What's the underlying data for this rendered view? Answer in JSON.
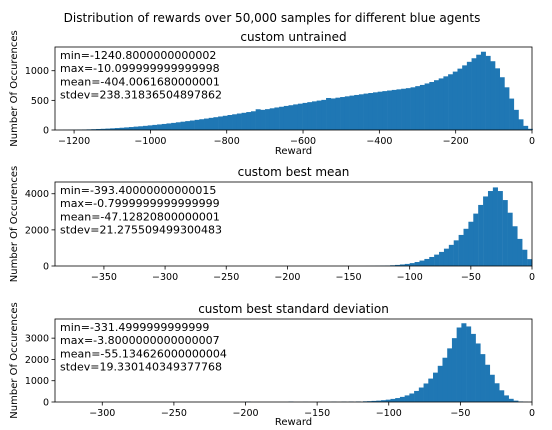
{
  "figure": {
    "suptitle": "Distribution of rewards over 50,000 samples for different blue agents",
    "bar_color": "#1f77b4"
  },
  "chart_data": [
    {
      "type": "bar",
      "title": "custom untrained",
      "xlabel": "Reward",
      "ylabel": "Number Of Occurences",
      "xlim": [
        -1250,
        0
      ],
      "ylim": [
        0,
        1400
      ],
      "xticks": [
        -1200,
        -1000,
        -800,
        -600,
        -400,
        -200,
        0
      ],
      "xtick_labels": [
        "−1200",
        "−1000",
        "−800",
        "−600",
        "−400",
        "−200",
        "0"
      ],
      "yticks": [
        0,
        500,
        1000
      ],
      "ytick_labels": [
        "0",
        "500",
        "1000"
      ],
      "stats": [
        "min=-1240.8000000000002",
        "max=-10.099999999999998",
        "mean=-404.0061680000001",
        "stdev=238.31836504897862"
      ],
      "bin_width": 12.3,
      "bins": [
        [
          -1240.8,
          2
        ],
        [
          -1228.5,
          3
        ],
        [
          -1216.2,
          4
        ],
        [
          -1203.9,
          5
        ],
        [
          -1191.6,
          7
        ],
        [
          -1179.3,
          9
        ],
        [
          -1167.0,
          11
        ],
        [
          -1154.7,
          14
        ],
        [
          -1142.4,
          17
        ],
        [
          -1130.1,
          20
        ],
        [
          -1117.8,
          24
        ],
        [
          -1105.5,
          28
        ],
        [
          -1093.2,
          33
        ],
        [
          -1080.9,
          38
        ],
        [
          -1068.6,
          44
        ],
        [
          -1056.3,
          50
        ],
        [
          -1044.0,
          57
        ],
        [
          -1031.7,
          63
        ],
        [
          -1019.4,
          70
        ],
        [
          -1007.1,
          78
        ],
        [
          -994.8,
          86
        ],
        [
          -982.5,
          94
        ],
        [
          -970.2,
          102
        ],
        [
          -957.9,
          111
        ],
        [
          -945.6,
          120
        ],
        [
          -933.3,
          130
        ],
        [
          -921.0,
          140
        ],
        [
          -908.7,
          150
        ],
        [
          -896.4,
          160
        ],
        [
          -884.1,
          171
        ],
        [
          -871.8,
          182
        ],
        [
          -859.5,
          193
        ],
        [
          -847.2,
          205
        ],
        [
          -834.9,
          216
        ],
        [
          -822.6,
          228
        ],
        [
          -810.3,
          240
        ],
        [
          -798.0,
          253
        ],
        [
          -785.7,
          265
        ],
        [
          -773.4,
          278
        ],
        [
          -761.1,
          290
        ],
        [
          -748.8,
          303
        ],
        [
          -736.5,
          316
        ],
        [
          -724.2,
          350
        ],
        [
          -711.9,
          340
        ],
        [
          -699.6,
          352
        ],
        [
          -687.3,
          366
        ],
        [
          -675.0,
          380
        ],
        [
          -662.7,
          392
        ],
        [
          -650.4,
          406
        ],
        [
          -638.1,
          418
        ],
        [
          -625.8,
          432
        ],
        [
          -613.5,
          444
        ],
        [
          -601.2,
          457
        ],
        [
          -588.9,
          470
        ],
        [
          -576.6,
          483
        ],
        [
          -564.3,
          496
        ],
        [
          -552.0,
          508
        ],
        [
          -539.7,
          540
        ],
        [
          -527.4,
          532
        ],
        [
          -515.1,
          545
        ],
        [
          -502.8,
          556
        ],
        [
          -490.5,
          568
        ],
        [
          -478.2,
          580
        ],
        [
          -465.9,
          591
        ],
        [
          -453.6,
          602
        ],
        [
          -441.3,
          614
        ],
        [
          -429.0,
          624
        ],
        [
          -416.7,
          635
        ],
        [
          -404.4,
          646
        ],
        [
          -392.1,
          656
        ],
        [
          -379.8,
          666
        ],
        [
          -367.5,
          676
        ],
        [
          -355.2,
          686
        ],
        [
          -342.9,
          696
        ],
        [
          -330.6,
          706
        ],
        [
          -318.3,
          720
        ],
        [
          -306.0,
          740
        ],
        [
          -293.7,
          760
        ],
        [
          -281.4,
          785
        ],
        [
          -269.1,
          810
        ],
        [
          -256.8,
          840
        ],
        [
          -244.5,
          870
        ],
        [
          -232.2,
          905
        ],
        [
          -219.9,
          940
        ],
        [
          -207.6,
          985
        ],
        [
          -195.3,
          1035
        ],
        [
          -183.0,
          1090
        ],
        [
          -170.7,
          1150
        ],
        [
          -158.4,
          1210
        ],
        [
          -146.1,
          1270
        ],
        [
          -133.8,
          1320
        ],
        [
          -121.5,
          1250
        ],
        [
          -109.2,
          1160
        ],
        [
          -96.9,
          1040
        ],
        [
          -84.6,
          890
        ],
        [
          -72.3,
          720
        ],
        [
          -60.0,
          530
        ],
        [
          -47.7,
          340
        ],
        [
          -35.4,
          180
        ],
        [
          -23.1,
          70
        ],
        [
          -10.8,
          20
        ]
      ]
    },
    {
      "type": "bar",
      "title": "custom best mean",
      "xlabel": "",
      "ylabel": "Number Of Occurences",
      "xlim": [
        -390,
        0
      ],
      "ylim": [
        0,
        4650
      ],
      "xticks": [
        -350,
        -300,
        -250,
        -200,
        -150,
        -100,
        -50,
        0
      ],
      "xtick_labels": [
        "−350",
        "−300",
        "−250",
        "−200",
        "−150",
        "−100",
        "−50",
        "0"
      ],
      "yticks": [
        0,
        2000,
        4000
      ],
      "ytick_labels": [
        "0",
        "2000",
        "4000"
      ],
      "stats": [
        "min=-393.40000000000015",
        "max=-0.7999999999999999",
        "mean=-47.12820800000001",
        "stdev=21.275509499300483"
      ],
      "bin_width": 3.93,
      "bins": [
        [
          -136,
          4
        ],
        [
          -132,
          8
        ],
        [
          -128,
          12
        ],
        [
          -124,
          18
        ],
        [
          -120,
          26
        ],
        [
          -116,
          40
        ],
        [
          -112,
          60
        ],
        [
          -108,
          85
        ],
        [
          -104,
          115
        ],
        [
          -100,
          160
        ],
        [
          -96,
          220
        ],
        [
          -92,
          300
        ],
        [
          -88,
          390
        ],
        [
          -84,
          500
        ],
        [
          -80,
          630
        ],
        [
          -76,
          780
        ],
        [
          -72,
          960
        ],
        [
          -68,
          1170
        ],
        [
          -64,
          1420
        ],
        [
          -60,
          1720
        ],
        [
          -56,
          2060
        ],
        [
          -52,
          2450
        ],
        [
          -48,
          2900
        ],
        [
          -44,
          3380
        ],
        [
          -40,
          3850
        ],
        [
          -36,
          4150
        ],
        [
          -32,
          4350
        ],
        [
          -28,
          4150
        ],
        [
          -24,
          3650
        ],
        [
          -20,
          2950
        ],
        [
          -16,
          2200
        ],
        [
          -12,
          1500
        ],
        [
          -8,
          900
        ],
        [
          -4,
          380
        ]
      ]
    },
    {
      "type": "bar",
      "title": "custom best standard deviation",
      "xlabel": "Reward",
      "ylabel": "Number Of Occurences",
      "xlim": [
        -333,
        0
      ],
      "ylim": [
        0,
        3900
      ],
      "xticks": [
        -300,
        -250,
        -200,
        -150,
        -100,
        -50,
        0
      ],
      "xtick_labels": [
        "−300",
        "−250",
        "−200",
        "−150",
        "−100",
        "−50",
        "0"
      ],
      "yticks": [
        0,
        1000,
        2000,
        3000
      ],
      "ytick_labels": [
        "0",
        "1000",
        "2000",
        "3000"
      ],
      "stats": [
        "min=-331.4999999999999",
        "max=-3.8000000000000007",
        "mean=-55.134626000000004",
        "stdev=19.330140349377768"
      ],
      "bin_width": 3.3,
      "bins": [
        [
          -200,
          15
        ],
        [
          -170,
          18
        ],
        [
          -160,
          6
        ],
        [
          -150,
          8
        ],
        [
          -140,
          10
        ],
        [
          -133,
          14
        ],
        [
          -128,
          18
        ],
        [
          -123,
          24
        ],
        [
          -118,
          32
        ],
        [
          -115,
          40
        ],
        [
          -112,
          52
        ],
        [
          -108.7,
          65
        ],
        [
          -105.4,
          85
        ],
        [
          -102.1,
          110
        ],
        [
          -98.8,
          145
        ],
        [
          -95.5,
          185
        ],
        [
          -92.2,
          240
        ],
        [
          -88.9,
          310
        ],
        [
          -85.6,
          400
        ],
        [
          -82.3,
          520
        ],
        [
          -79.0,
          680
        ],
        [
          -75.7,
          870
        ],
        [
          -72.4,
          1100
        ],
        [
          -69.1,
          1380
        ],
        [
          -65.8,
          1700
        ],
        [
          -62.5,
          2080
        ],
        [
          -59.2,
          2520
        ],
        [
          -55.9,
          3000
        ],
        [
          -52.6,
          3500
        ],
        [
          -49.3,
          3700
        ],
        [
          -46.0,
          3550
        ],
        [
          -42.7,
          3200
        ],
        [
          -39.4,
          2750
        ],
        [
          -36.1,
          2250
        ],
        [
          -32.8,
          1750
        ],
        [
          -29.5,
          1280
        ],
        [
          -26.2,
          880
        ],
        [
          -22.9,
          550
        ],
        [
          -19.6,
          310
        ],
        [
          -16.3,
          150
        ],
        [
          -13.0,
          65
        ],
        [
          -9.7,
          25
        ],
        [
          -6.4,
          8
        ]
      ]
    }
  ]
}
